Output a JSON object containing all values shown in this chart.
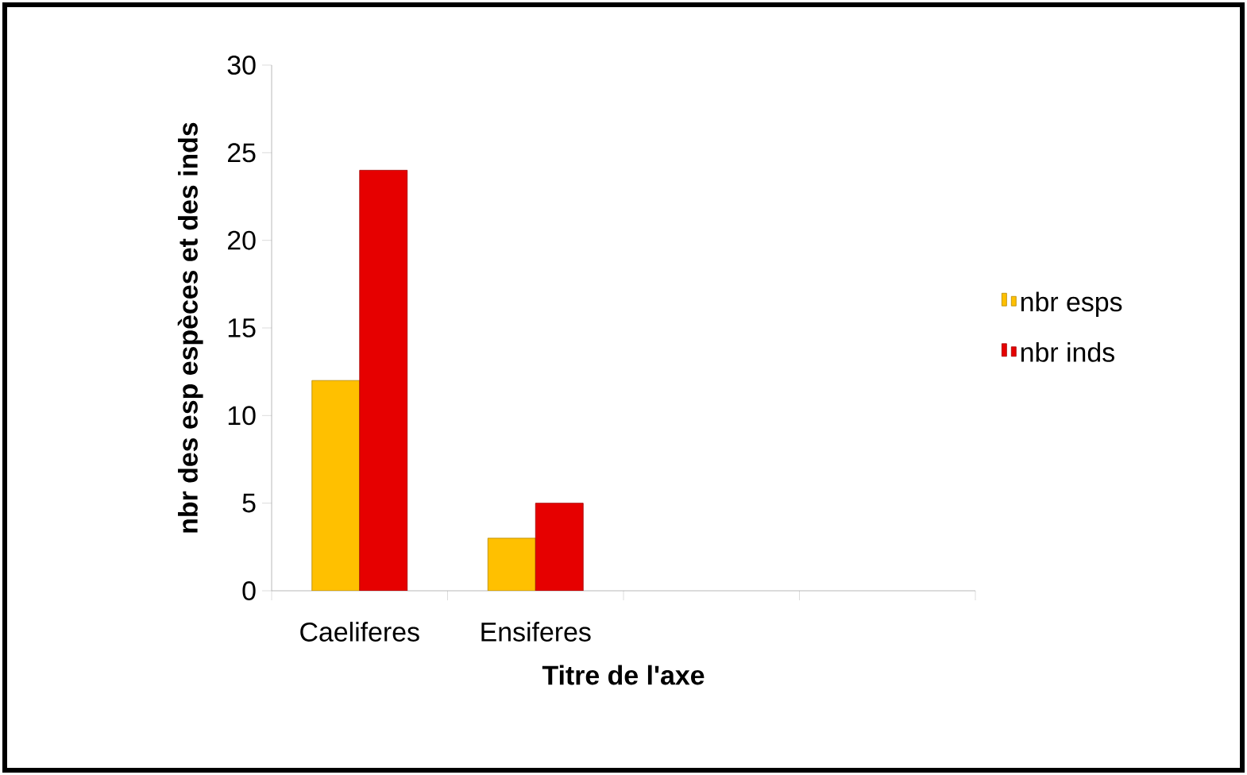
{
  "chart_data": {
    "type": "bar",
    "xlabel": "Titre de l'axe",
    "ylabel": "nbr des esp espèces et des inds",
    "categories": [
      "Caeliferes",
      "Ensiferes",
      null,
      null
    ],
    "series": [
      {
        "name": "nbr esps",
        "color": "#ffc000",
        "values": [
          12,
          3,
          null,
          null
        ]
      },
      {
        "name": "nbr inds",
        "color": "#e60000",
        "values": [
          24,
          5,
          null,
          null
        ]
      }
    ],
    "ylim": [
      0,
      30
    ],
    "yticks": [
      0,
      5,
      10,
      15,
      20,
      25,
      30
    ],
    "legend": "right"
  }
}
